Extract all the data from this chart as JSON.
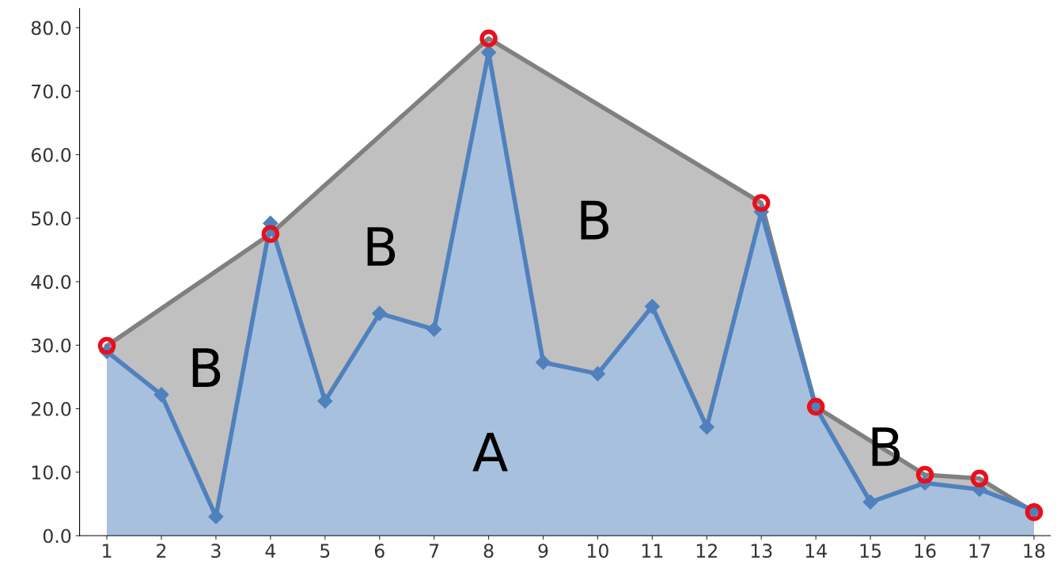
{
  "chart_data": {
    "type": "area",
    "x": [
      1,
      2,
      3,
      4,
      5,
      6,
      7,
      8,
      9,
      10,
      11,
      12,
      13,
      14,
      15,
      16,
      17,
      18
    ],
    "series": [
      {
        "color": "#808080",
        "marker": "none",
        "x": [
          1,
          4,
          8,
          13,
          14,
          16,
          17,
          18
        ],
        "values": [
          29.9,
          47.5,
          78.3,
          52.4,
          20.3,
          9.6,
          9.0,
          3.7
        ]
      },
      {
        "color": "#4f81bd",
        "marker": "diamond",
        "values": [
          29,
          22.2,
          3,
          49.2,
          21.2,
          35,
          32.5,
          76.1,
          27.3,
          25.5,
          36.1,
          17.1,
          51,
          20.2,
          5.3,
          8.3,
          7.3,
          4
        ]
      },
      {
        "type": "scatter",
        "color": "#e8101c",
        "marker": "circle",
        "x": [
          1,
          4,
          8,
          13,
          14,
          16,
          17,
          18
        ],
        "values": [
          29.9,
          47.5,
          78.3,
          52.4,
          20.3,
          9.6,
          9.0,
          3.7
        ]
      }
    ],
    "xlim": [
      0.5,
      18.3
    ],
    "xticks": [
      1,
      2,
      3,
      4,
      5,
      6,
      7,
      8,
      9,
      10,
      11,
      12,
      13,
      14,
      15,
      16,
      17,
      18
    ],
    "ylim": [
      0,
      83
    ],
    "yticks": [
      {
        "value": 0,
        "label": "0.0"
      },
      {
        "value": 10,
        "label": "10.0"
      },
      {
        "value": 20,
        "label": "20.0"
      },
      {
        "value": 30,
        "label": "30.0"
      },
      {
        "value": 40,
        "label": "40.0"
      },
      {
        "value": 50,
        "label": "50.0"
      },
      {
        "value": 60,
        "label": "60.0"
      },
      {
        "value": 70,
        "label": "70.0"
      },
      {
        "value": 80,
        "label": "80.0"
      }
    ],
    "grid": false,
    "annotations": [
      "B",
      "B",
      "B",
      "B",
      "A"
    ]
  }
}
